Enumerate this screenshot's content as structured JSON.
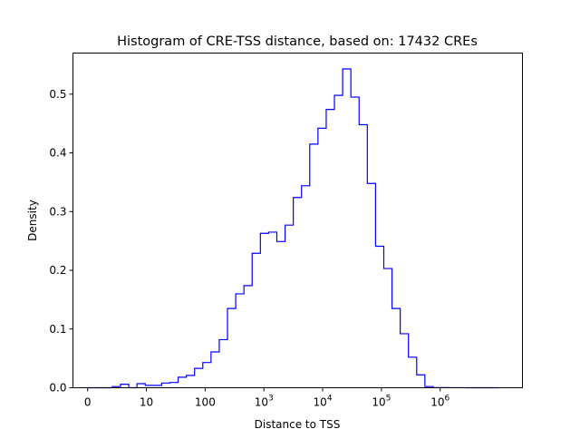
{
  "chart_data": {
    "type": "histogram-step",
    "title": "Histogram of CRE-TSS distance, based on: 17432 CREs",
    "xlabel": "Distance to TSS",
    "ylabel": "Density",
    "x_scale": "log10(distance + 1)",
    "xlim": [
      -0.25,
      7.4
    ],
    "ylim": [
      0,
      0.57
    ],
    "bin_range": [
      0,
      7
    ],
    "x_ticks": [
      {
        "pos": 0,
        "base": "0",
        "exp": ""
      },
      {
        "pos": 1,
        "base": "10",
        "exp": ""
      },
      {
        "pos": 2,
        "base": "100",
        "exp": ""
      },
      {
        "pos": 3,
        "base": "10",
        "exp": "3"
      },
      {
        "pos": 4,
        "base": "10",
        "exp": "4"
      },
      {
        "pos": 5,
        "base": "10",
        "exp": "5"
      },
      {
        "pos": 6,
        "base": "10",
        "exp": "6"
      }
    ],
    "y_ticks": [
      "0.0",
      "0.1",
      "0.2",
      "0.3",
      "0.4",
      "0.5"
    ],
    "line_color": "#0000ff",
    "grid": false,
    "densities": [
      0,
      0,
      0,
      0.002,
      0.006,
      0,
      0.007,
      0.004,
      0.004,
      0.008,
      0.009,
      0.018,
      0.021,
      0.033,
      0.043,
      0.061,
      0.082,
      0.135,
      0.16,
      0.174,
      0.229,
      0.263,
      0.265,
      0.249,
      0.277,
      0.324,
      0.344,
      0.415,
      0.442,
      0.474,
      0.498,
      0.543,
      0.495,
      0.448,
      0.348,
      0.241,
      0.203,
      0.135,
      0.092,
      0.052,
      0.022,
      0.002,
      0.0003,
      0.0002,
      0.0001,
      0.0001,
      0,
      0,
      0,
      0
    ]
  }
}
